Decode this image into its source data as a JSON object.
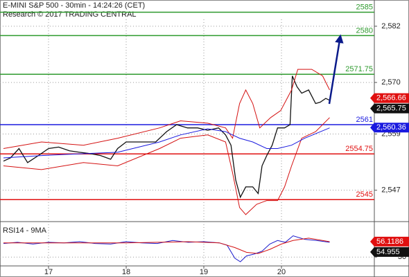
{
  "chart_data": {
    "type": "line",
    "title": "E-MINI S&P 500 - 30min - 14:24:26 (CET)",
    "subtitle": "Research © 2017 TRADING CENTRAL",
    "xlim": [
      16.375,
      21.196
    ],
    "xticks": [
      17,
      18,
      19,
      20
    ],
    "ylim": [
      2540.3,
      2587.6
    ],
    "yticks": [
      {
        "value": 2582,
        "label": "2,582"
      },
      {
        "value": 2570,
        "label": "2,570"
      },
      {
        "value": 2559,
        "label": "2,559"
      },
      {
        "value": 2547,
        "label": "2,547"
      }
    ],
    "grid": true,
    "levels": [
      {
        "value": 2585,
        "color": "#2e9a2e"
      },
      {
        "value": 2580,
        "color": "#2e9a2e"
      },
      {
        "value": 2571.75,
        "color": "#2e9a2e"
      },
      {
        "value": 2561,
        "color": "#1a1adf"
      },
      {
        "value": 2554.75,
        "color": "#e01010"
      },
      {
        "value": 2545,
        "color": "#e01010"
      }
    ],
    "series": [
      {
        "color": "#111111",
        "width": 1.3,
        "x": [
          16.42,
          16.51,
          16.62,
          16.73,
          16.87,
          17.0,
          17.13,
          17.27,
          17.4,
          17.54,
          17.67,
          17.8,
          17.89,
          18.0,
          18.12,
          18.25,
          18.38,
          18.52,
          18.65,
          18.79,
          18.92,
          19.05,
          19.19,
          19.28,
          19.35,
          19.41,
          19.47,
          19.54,
          19.63,
          19.7,
          19.75,
          19.81,
          19.88,
          19.95,
          20.04,
          20.11,
          20.14,
          20.2,
          20.26,
          20.35,
          20.44,
          20.5,
          20.57,
          20.62
        ],
        "values": [
          2553.2,
          2553.9,
          2555.9,
          2552.9,
          2554.4,
          2555.9,
          2556.2,
          2555.4,
          2555.1,
          2554.8,
          2554.4,
          2553.6,
          2555.9,
          2557.3,
          2557.3,
          2557.3,
          2557.3,
          2559.5,
          2561.0,
          2560.3,
          2560.3,
          2559.8,
          2560.3,
          2558.8,
          2556.6,
          2549.2,
          2545.5,
          2547.7,
          2547.7,
          2546.3,
          2552.2,
          2554.4,
          2556.6,
          2560.3,
          2560.3,
          2561.0,
          2571.4,
          2569.1,
          2567.7,
          2568.4,
          2565.5,
          2565.8,
          2566.6,
          2566.2
        ]
      },
      {
        "color": "#d41010",
        "width": 1,
        "x": [
          16.42,
          16.91,
          17.45,
          17.89,
          18.43,
          18.7,
          19.05,
          19.28,
          19.37,
          19.46,
          19.54,
          19.63,
          19.72,
          19.86,
          19.99,
          20.13,
          20.21,
          20.39,
          20.53,
          20.62
        ],
        "values": [
          2555.9,
          2557.3,
          2556.6,
          2558.1,
          2560.3,
          2561.8,
          2561.3,
          2560.3,
          2558.1,
          2565.5,
          2568.4,
          2565.5,
          2560.3,
          2562.5,
          2564.0,
          2568.4,
          2572.8,
          2572.8,
          2571.4,
          2568.4
        ]
      },
      {
        "color": "#d41010",
        "width": 1,
        "x": [
          16.42,
          16.91,
          17.45,
          17.89,
          18.43,
          18.7,
          19.05,
          19.28,
          19.37,
          19.46,
          19.54,
          19.68,
          19.81,
          19.95,
          20.04,
          20.13,
          20.26,
          20.44,
          20.62
        ],
        "values": [
          2552.2,
          2551.4,
          2552.9,
          2552.2,
          2555.9,
          2558.1,
          2558.8,
          2557.3,
          2550.7,
          2543.3,
          2541.8,
          2544.0,
          2544.8,
          2544.8,
          2547.7,
          2552.2,
          2558.1,
          2559.5,
          2562.5
        ]
      },
      {
        "color": "#1a1adf",
        "width": 1,
        "x": [
          16.42,
          16.91,
          17.45,
          17.89,
          18.43,
          18.7,
          19.05,
          19.28,
          19.46,
          19.63,
          19.81,
          19.95,
          20.13,
          20.3,
          20.62
        ],
        "values": [
          2553.9,
          2554.4,
          2554.8,
          2555.1,
          2557.3,
          2558.8,
          2560.1,
          2559.5,
          2558.1,
          2557.3,
          2555.9,
          2555.9,
          2556.6,
          2558.1,
          2560.3
        ]
      }
    ],
    "price_tags": [
      {
        "value": 2566.66,
        "label": "2,566.66",
        "color": "#e01010",
        "text_color": "#ffffff"
      },
      {
        "value": 2565.75,
        "label": "2,565.75",
        "color": "#111111",
        "text_color": "#ffffff"
      },
      {
        "value": 2560.36,
        "label": "2,560.36",
        "color": "#1a1adf",
        "text_color": "#ffffff"
      }
    ],
    "rsi": {
      "title": "RSI14 - 9MA",
      "ylim": [
        15,
        90
      ],
      "yticks": [
        30
      ],
      "series": [
        {
          "color": "#1a1acc",
          "x": [
            16.42,
            16.6,
            16.8,
            17.0,
            17.2,
            17.4,
            17.6,
            17.8,
            18.0,
            18.2,
            18.4,
            18.6,
            18.8,
            19.0,
            19.2,
            19.3,
            19.4,
            19.47,
            19.55,
            19.65,
            19.75,
            19.85,
            19.95,
            20.05,
            20.15,
            20.3,
            20.45,
            20.62
          ],
          "values": [
            53,
            55,
            52,
            55,
            54,
            56,
            53,
            52,
            56,
            54,
            53,
            58,
            55,
            56,
            54,
            50,
            28,
            22,
            32,
            35,
            40,
            52,
            58,
            55,
            66,
            60,
            58,
            55
          ]
        },
        {
          "color": "#d41010",
          "x": [
            16.42,
            16.8,
            17.2,
            17.6,
            18.0,
            18.4,
            18.8,
            19.2,
            19.4,
            19.55,
            19.7,
            19.85,
            20.0,
            20.15,
            20.35,
            20.62
          ],
          "values": [
            54,
            54,
            54,
            54,
            54,
            55,
            56,
            54,
            46,
            38,
            36,
            43,
            52,
            58,
            62,
            56
          ]
        }
      ],
      "value_tags": [
        {
          "value": 56.1186,
          "label": "56.1186",
          "color": "#e01010",
          "text_color": "#ffffff"
        },
        {
          "value": 54.955,
          "label": "54.955",
          "color": "#111111",
          "text_color": "#ffffff"
        }
      ]
    }
  }
}
